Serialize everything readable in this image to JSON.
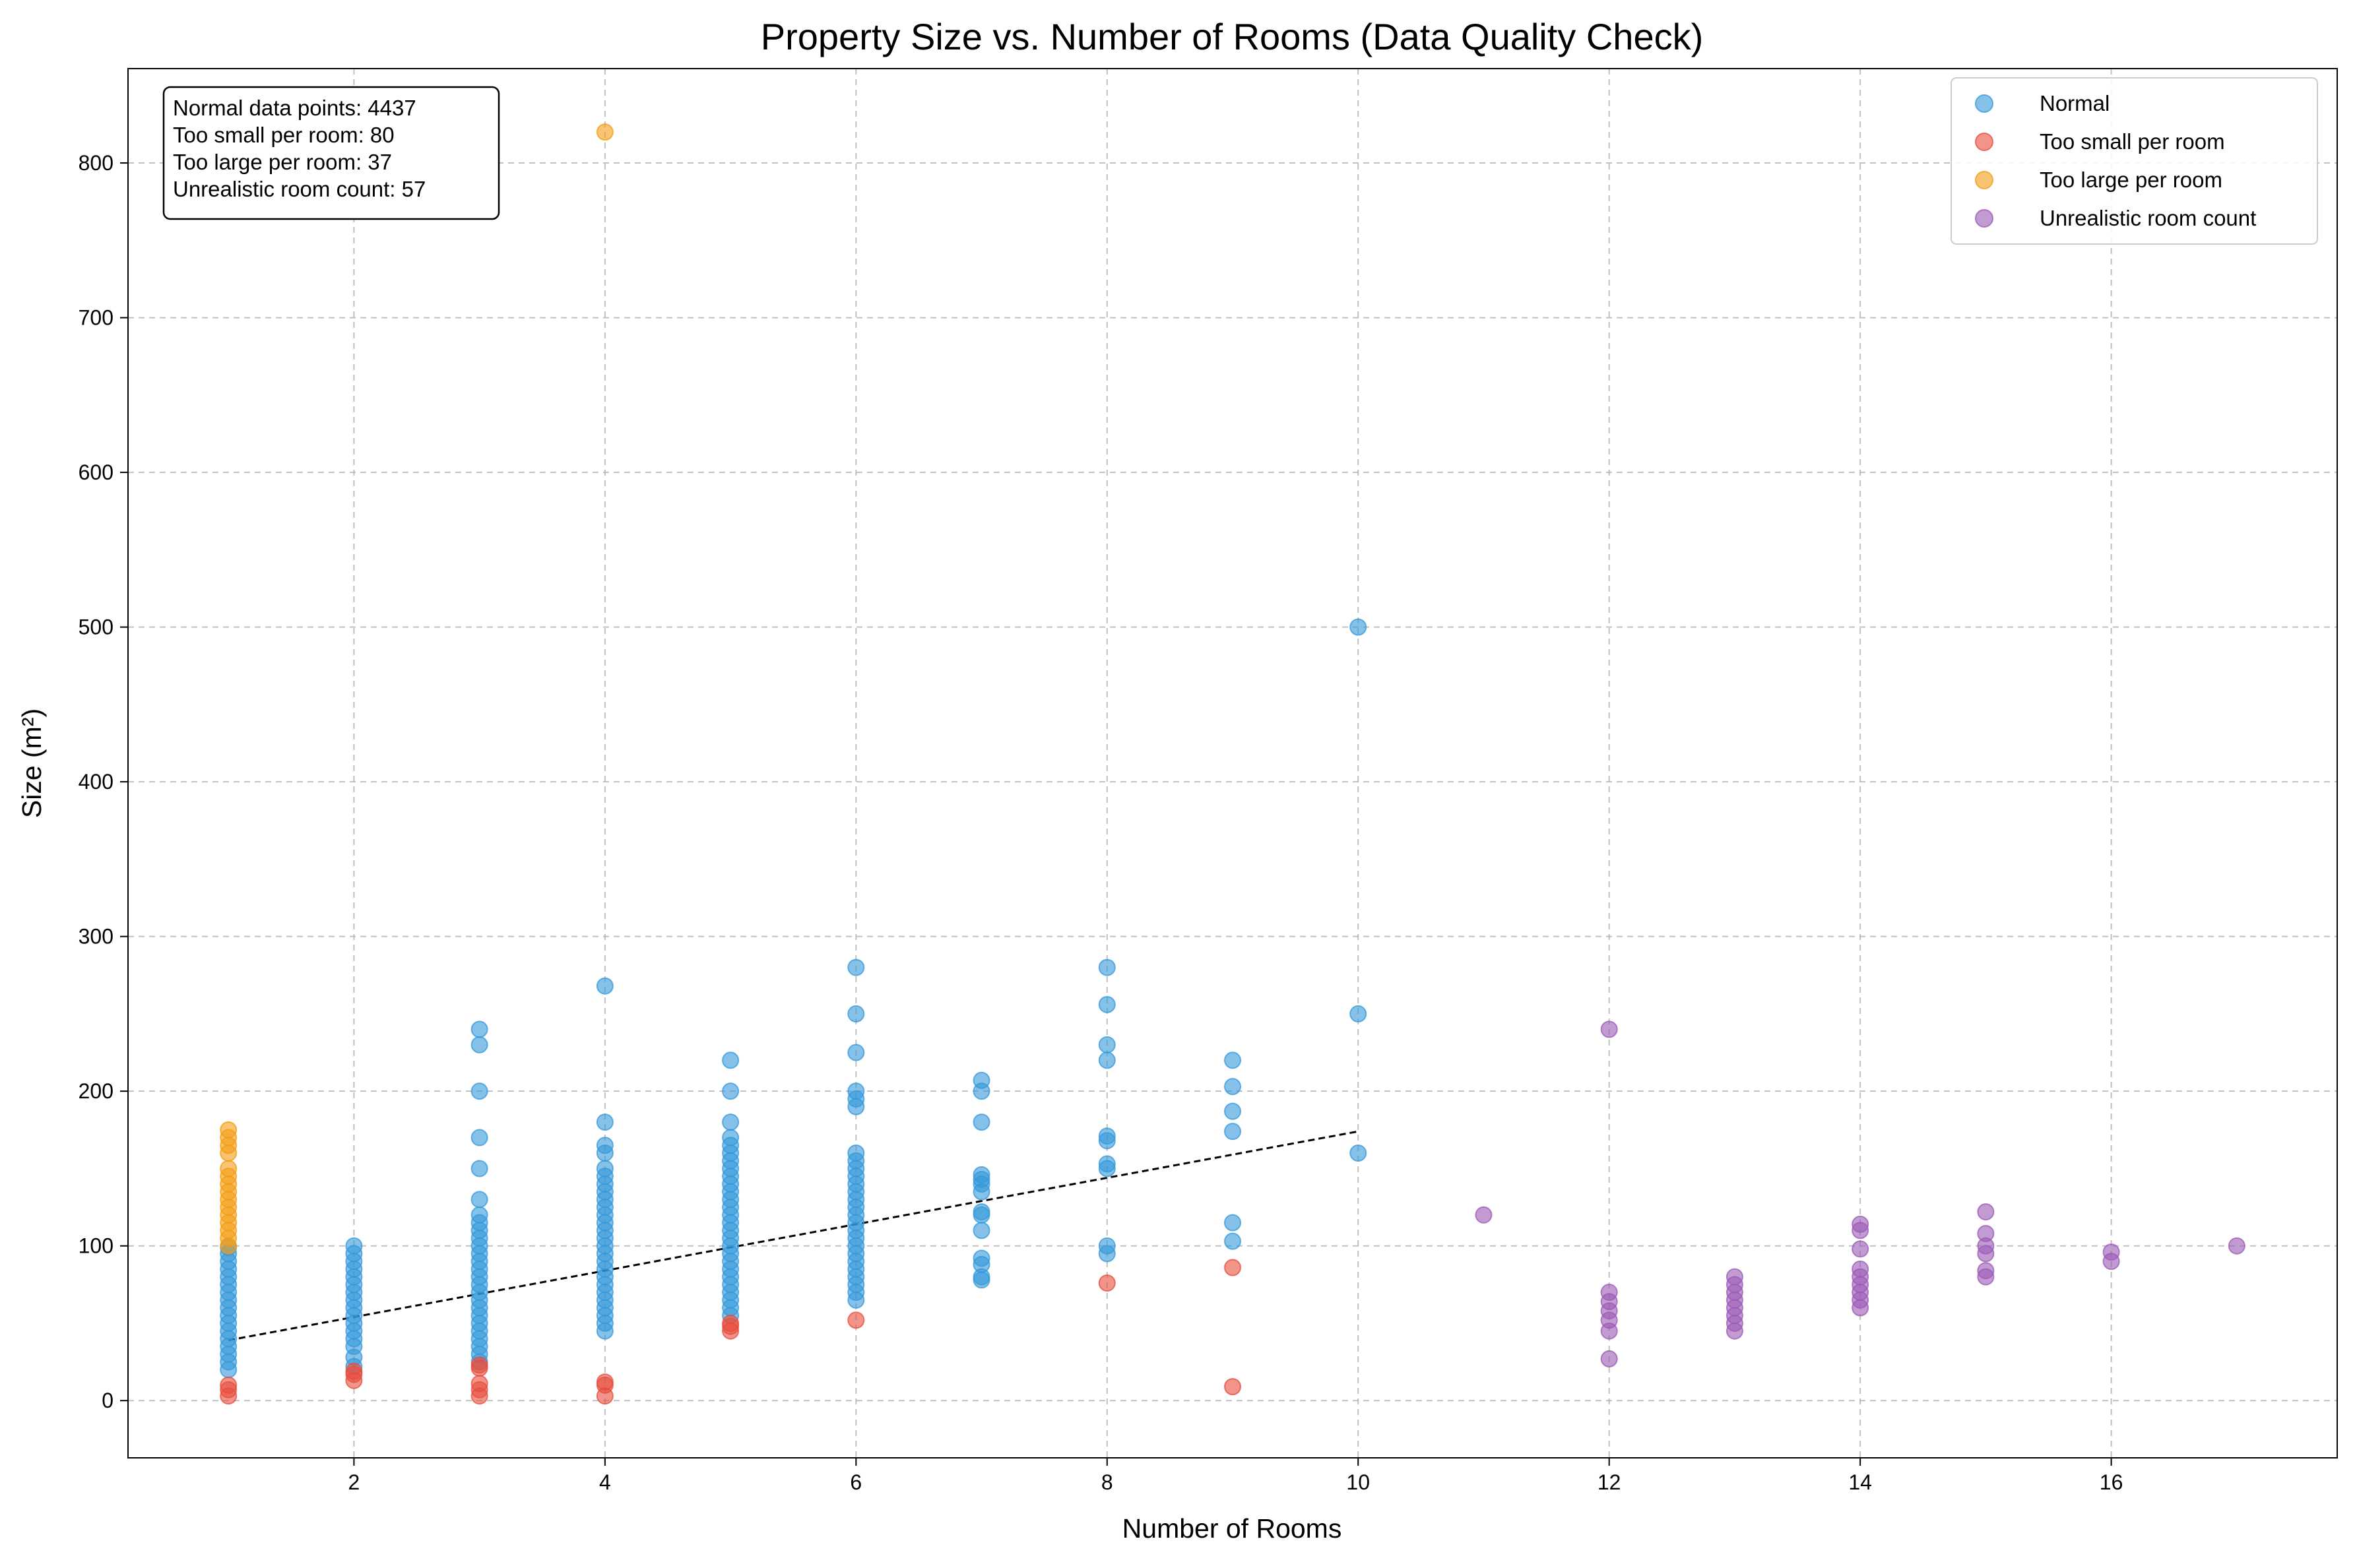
{
  "chart_data": {
    "type": "scatter",
    "title": "Property Size vs. Number of Rooms (Data Quality Check)",
    "xlabel": "Number of Rooms",
    "ylabel": "Size (m²)",
    "xlim": [
      0.2,
      17.8
    ],
    "ylim": [
      -37,
      861
    ],
    "x_ticks": [
      2,
      4,
      6,
      8,
      10,
      12,
      14,
      16
    ],
    "y_ticks": [
      0,
      100,
      200,
      300,
      400,
      500,
      600,
      700,
      800
    ],
    "grid": true,
    "legend_position": "top-right",
    "stats_position": "top-left",
    "stats_lines": [
      "Normal data points: 4437",
      "Too small per room: 80",
      "Too large per room: 37",
      "Unrealistic room count: 57"
    ],
    "trendline": {
      "style": "dashed",
      "color": "#000000",
      "points": [
        [
          1,
          39
        ],
        [
          10,
          174
        ]
      ]
    },
    "series": [
      {
        "name": "Normal",
        "color": "#3498db",
        "points": [
          [
            1,
            20
          ],
          [
            1,
            25
          ],
          [
            1,
            30
          ],
          [
            1,
            35
          ],
          [
            1,
            40
          ],
          [
            1,
            45
          ],
          [
            1,
            50
          ],
          [
            1,
            55
          ],
          [
            1,
            60
          ],
          [
            1,
            65
          ],
          [
            1,
            70
          ],
          [
            1,
            75
          ],
          [
            1,
            80
          ],
          [
            1,
            85
          ],
          [
            1,
            90
          ],
          [
            1,
            95
          ],
          [
            1,
            99
          ],
          [
            2,
            22
          ],
          [
            2,
            28
          ],
          [
            2,
            35
          ],
          [
            2,
            40
          ],
          [
            2,
            45
          ],
          [
            2,
            50
          ],
          [
            2,
            55
          ],
          [
            2,
            60
          ],
          [
            2,
            65
          ],
          [
            2,
            70
          ],
          [
            2,
            75
          ],
          [
            2,
            80
          ],
          [
            2,
            85
          ],
          [
            2,
            90
          ],
          [
            2,
            95
          ],
          [
            2,
            100
          ],
          [
            3,
            25
          ],
          [
            3,
            30
          ],
          [
            3,
            35
          ],
          [
            3,
            40
          ],
          [
            3,
            45
          ],
          [
            3,
            50
          ],
          [
            3,
            55
          ],
          [
            3,
            60
          ],
          [
            3,
            65
          ],
          [
            3,
            70
          ],
          [
            3,
            75
          ],
          [
            3,
            80
          ],
          [
            3,
            85
          ],
          [
            3,
            90
          ],
          [
            3,
            95
          ],
          [
            3,
            100
          ],
          [
            3,
            105
          ],
          [
            3,
            110
          ],
          [
            3,
            115
          ],
          [
            3,
            120
          ],
          [
            3,
            130
          ],
          [
            3,
            150
          ],
          [
            3,
            170
          ],
          [
            3,
            200
          ],
          [
            3,
            230
          ],
          [
            3,
            240
          ],
          [
            4,
            45
          ],
          [
            4,
            50
          ],
          [
            4,
            55
          ],
          [
            4,
            60
          ],
          [
            4,
            65
          ],
          [
            4,
            70
          ],
          [
            4,
            75
          ],
          [
            4,
            80
          ],
          [
            4,
            85
          ],
          [
            4,
            90
          ],
          [
            4,
            95
          ],
          [
            4,
            100
          ],
          [
            4,
            105
          ],
          [
            4,
            110
          ],
          [
            4,
            115
          ],
          [
            4,
            120
          ],
          [
            4,
            125
          ],
          [
            4,
            130
          ],
          [
            4,
            135
          ],
          [
            4,
            140
          ],
          [
            4,
            145
          ],
          [
            4,
            150
          ],
          [
            4,
            160
          ],
          [
            4,
            165
          ],
          [
            4,
            180
          ],
          [
            4,
            268
          ],
          [
            5,
            55
          ],
          [
            5,
            60
          ],
          [
            5,
            65
          ],
          [
            5,
            70
          ],
          [
            5,
            75
          ],
          [
            5,
            80
          ],
          [
            5,
            85
          ],
          [
            5,
            90
          ],
          [
            5,
            95
          ],
          [
            5,
            100
          ],
          [
            5,
            105
          ],
          [
            5,
            110
          ],
          [
            5,
            115
          ],
          [
            5,
            120
          ],
          [
            5,
            125
          ],
          [
            5,
            130
          ],
          [
            5,
            135
          ],
          [
            5,
            140
          ],
          [
            5,
            145
          ],
          [
            5,
            150
          ],
          [
            5,
            155
          ],
          [
            5,
            160
          ],
          [
            5,
            165
          ],
          [
            5,
            170
          ],
          [
            5,
            180
          ],
          [
            5,
            200
          ],
          [
            5,
            220
          ],
          [
            6,
            65
          ],
          [
            6,
            70
          ],
          [
            6,
            75
          ],
          [
            6,
            80
          ],
          [
            6,
            85
          ],
          [
            6,
            90
          ],
          [
            6,
            95
          ],
          [
            6,
            100
          ],
          [
            6,
            105
          ],
          [
            6,
            110
          ],
          [
            6,
            115
          ],
          [
            6,
            120
          ],
          [
            6,
            125
          ],
          [
            6,
            130
          ],
          [
            6,
            135
          ],
          [
            6,
            140
          ],
          [
            6,
            145
          ],
          [
            6,
            150
          ],
          [
            6,
            155
          ],
          [
            6,
            160
          ],
          [
            6,
            190
          ],
          [
            6,
            195
          ],
          [
            6,
            200
          ],
          [
            6,
            225
          ],
          [
            6,
            250
          ],
          [
            6,
            280
          ],
          [
            7,
            78
          ],
          [
            7,
            80
          ],
          [
            7,
            88
          ],
          [
            7,
            92
          ],
          [
            7,
            110
          ],
          [
            7,
            120
          ],
          [
            7,
            122
          ],
          [
            7,
            135
          ],
          [
            7,
            140
          ],
          [
            7,
            143
          ],
          [
            7,
            146
          ],
          [
            7,
            180
          ],
          [
            7,
            200
          ],
          [
            7,
            207
          ],
          [
            8,
            95
          ],
          [
            8,
            100
          ],
          [
            8,
            150
          ],
          [
            8,
            153
          ],
          [
            8,
            168
          ],
          [
            8,
            171
          ],
          [
            8,
            220
          ],
          [
            8,
            230
          ],
          [
            8,
            256
          ],
          [
            8,
            280
          ],
          [
            9,
            103
          ],
          [
            9,
            115
          ],
          [
            9,
            174
          ],
          [
            9,
            187
          ],
          [
            9,
            203
          ],
          [
            9,
            220
          ],
          [
            10,
            160
          ],
          [
            10,
            250
          ],
          [
            10,
            500
          ]
        ]
      },
      {
        "name": "Too small per room",
        "color": "#e74c3c",
        "points": [
          [
            1,
            3
          ],
          [
            1,
            7
          ],
          [
            1,
            10
          ],
          [
            2,
            13
          ],
          [
            2,
            17
          ],
          [
            2,
            19
          ],
          [
            3,
            3
          ],
          [
            3,
            7
          ],
          [
            3,
            11
          ],
          [
            3,
            21
          ],
          [
            3,
            23
          ],
          [
            4,
            3
          ],
          [
            4,
            10
          ],
          [
            4,
            12
          ],
          [
            5,
            45
          ],
          [
            5,
            48
          ],
          [
            5,
            50
          ],
          [
            6,
            52
          ],
          [
            8,
            76
          ],
          [
            9,
            9
          ],
          [
            9,
            86
          ]
        ]
      },
      {
        "name": "Too large per room",
        "color": "#f39c12",
        "points": [
          [
            1,
            100
          ],
          [
            1,
            105
          ],
          [
            1,
            110
          ],
          [
            1,
            115
          ],
          [
            1,
            120
          ],
          [
            1,
            125
          ],
          [
            1,
            130
          ],
          [
            1,
            135
          ],
          [
            1,
            140
          ],
          [
            1,
            145
          ],
          [
            1,
            150
          ],
          [
            1,
            160
          ],
          [
            1,
            165
          ],
          [
            1,
            170
          ],
          [
            1,
            175
          ],
          [
            4,
            820
          ]
        ]
      },
      {
        "name": "Unrealistic room count",
        "color": "#9b59b6",
        "points": [
          [
            11,
            120
          ],
          [
            12,
            27
          ],
          [
            12,
            45
          ],
          [
            12,
            52
          ],
          [
            12,
            58
          ],
          [
            12,
            64
          ],
          [
            12,
            70
          ],
          [
            12,
            240
          ],
          [
            13,
            45
          ],
          [
            13,
            50
          ],
          [
            13,
            55
          ],
          [
            13,
            60
          ],
          [
            13,
            65
          ],
          [
            13,
            70
          ],
          [
            13,
            75
          ],
          [
            13,
            80
          ],
          [
            14,
            60
          ],
          [
            14,
            65
          ],
          [
            14,
            70
          ],
          [
            14,
            75
          ],
          [
            14,
            80
          ],
          [
            14,
            85
          ],
          [
            14,
            98
          ],
          [
            14,
            110
          ],
          [
            14,
            114
          ],
          [
            15,
            80
          ],
          [
            15,
            84
          ],
          [
            15,
            95
          ],
          [
            15,
            100
          ],
          [
            15,
            108
          ],
          [
            15,
            122
          ],
          [
            16,
            90
          ],
          [
            16,
            96
          ],
          [
            17,
            100
          ]
        ]
      }
    ]
  }
}
